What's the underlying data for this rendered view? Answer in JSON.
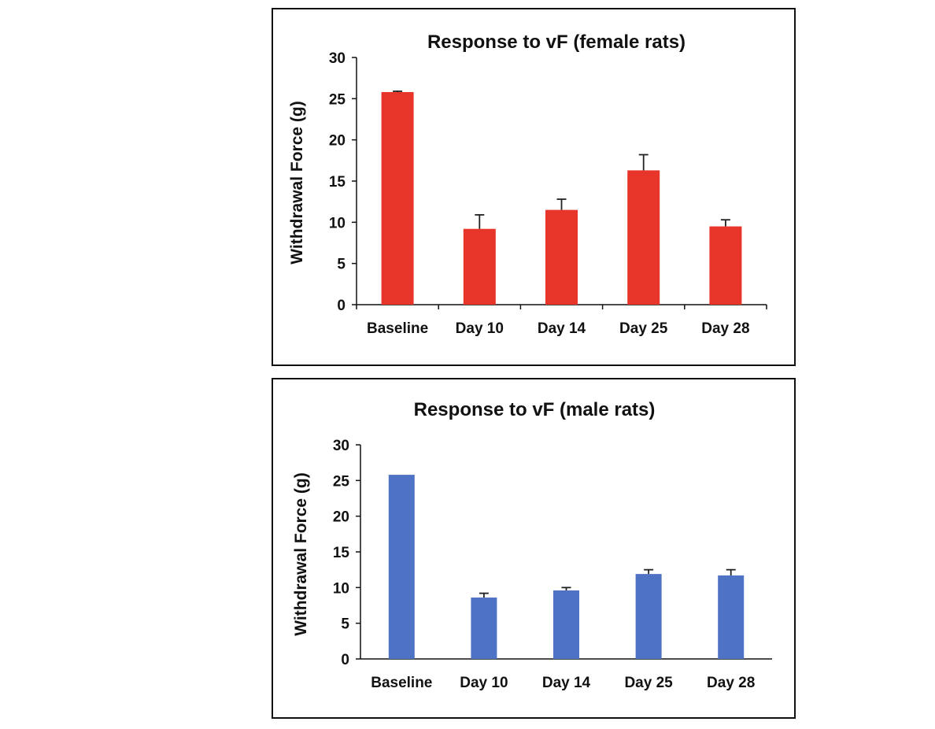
{
  "chart_data": [
    {
      "type": "bar",
      "title": "Response to vF (female rats)",
      "xlabel": "",
      "ylabel": "Withdrawal Force (g)",
      "ylim": [
        0,
        30
      ],
      "yticks": [
        0,
        5,
        10,
        15,
        20,
        25,
        30
      ],
      "categories": [
        "Baseline",
        "Day 10",
        "Day 14",
        "Day 25",
        "Day 28"
      ],
      "values": [
        25.8,
        9.2,
        11.5,
        16.3,
        9.5
      ],
      "errors": [
        0.1,
        1.7,
        1.3,
        1.9,
        0.8
      ],
      "color": "#e8352a",
      "grid": false,
      "legend": "none"
    },
    {
      "type": "bar",
      "title": "Response to vF (male rats)",
      "xlabel": "",
      "ylabel": "Withdrawal Force (g)",
      "ylim": [
        0,
        30
      ],
      "yticks": [
        0,
        5,
        10,
        15,
        20,
        25,
        30
      ],
      "categories": [
        "Baseline",
        "Day 10",
        "Day 14",
        "Day 25",
        "Day 28"
      ],
      "values": [
        25.8,
        8.6,
        9.6,
        11.9,
        11.7
      ],
      "errors": [
        0,
        0.6,
        0.4,
        0.6,
        0.8
      ],
      "color": "#4f73c4",
      "grid": false,
      "legend": "none"
    }
  ]
}
